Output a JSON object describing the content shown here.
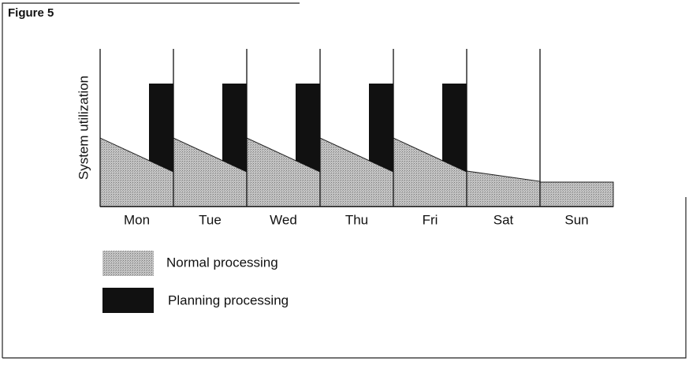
{
  "title": "Figure 5",
  "y_axis_label": "System utilization",
  "days": [
    "Mon",
    "Tue",
    "Wed",
    "Thu",
    "Fri",
    "Sat",
    "Sun"
  ],
  "legend": [
    "Normal processing",
    "Planning processing"
  ]
}
